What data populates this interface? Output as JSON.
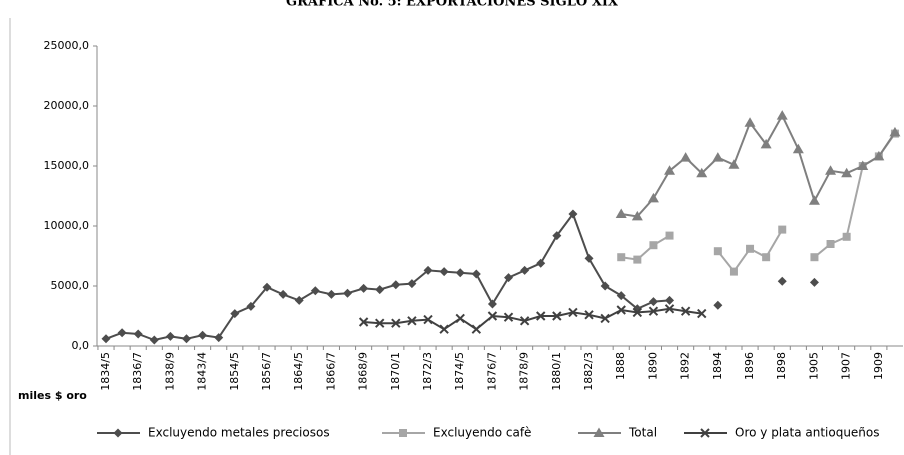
{
  "chart_data": {
    "type": "line",
    "title": "GRÁFICA No. 5: EXPORTACIONES SIGLO XIX",
    "ylabel": "miles $ oro",
    "categories": [
      "1834/5",
      null,
      "1836/7",
      null,
      "1838/9",
      null,
      "1843/4",
      null,
      "1854/5",
      null,
      "1856/7",
      null,
      "1864/5",
      null,
      "1866/7",
      null,
      "1868/9",
      null,
      "1870/1",
      null,
      "1872/3",
      null,
      "1874/5",
      null,
      "1876/7",
      null,
      "1878/9",
      null,
      "1880/1",
      null,
      "1882/3",
      null,
      "1888",
      null,
      "1890",
      null,
      "1892",
      null,
      "1894",
      null,
      "1896",
      null,
      "1898",
      null,
      "1905",
      null,
      "1907",
      null,
      "1909",
      null
    ],
    "ylim": [
      0,
      25000
    ],
    "yticks": [
      {
        "value": 0,
        "label": "0,0"
      },
      {
        "value": 5000,
        "label": "5000,0"
      },
      {
        "value": 10000,
        "label": "10000,0"
      },
      {
        "value": 15000,
        "label": "15000,0"
      },
      {
        "value": 20000,
        "label": "20000,0"
      },
      {
        "value": 25000,
        "label": "25000,0"
      }
    ],
    "grid": false,
    "legend": "bottom",
    "series": [
      {
        "name": "Excluyendo metales preciosos",
        "color": "#4d4d4d",
        "marker": "diamond",
        "values": [
          600,
          1100,
          1000,
          500,
          800,
          600,
          900,
          700,
          2700,
          3300,
          4900,
          4300,
          3800,
          4600,
          4300,
          4400,
          4800,
          4700,
          5100,
          5200,
          6300,
          6200,
          6100,
          6000,
          3500,
          5700,
          6300,
          6900,
          9200,
          11000,
          7300,
          5000,
          4200,
          3100,
          3700,
          3800,
          null,
          null,
          3400,
          null,
          null,
          null,
          5400,
          null,
          5300,
          null,
          null,
          null,
          null,
          null
        ]
      },
      {
        "name": "Excluyendo cafè",
        "color": "#a6a6a6",
        "marker": "square",
        "values": [
          null,
          null,
          null,
          null,
          null,
          null,
          null,
          null,
          null,
          null,
          null,
          null,
          null,
          null,
          null,
          null,
          null,
          null,
          null,
          null,
          null,
          null,
          null,
          null,
          null,
          null,
          null,
          null,
          null,
          null,
          null,
          null,
          7400,
          7200,
          8400,
          9200,
          null,
          null,
          7900,
          6200,
          8100,
          7400,
          9700,
          null,
          7400,
          8500,
          9100,
          15000,
          15800,
          17700
        ]
      },
      {
        "name": "Total",
        "color": "#7f7f7f",
        "marker": "triangle",
        "values": [
          null,
          null,
          null,
          null,
          null,
          null,
          null,
          null,
          null,
          null,
          null,
          null,
          null,
          null,
          null,
          null,
          null,
          null,
          null,
          null,
          null,
          null,
          null,
          null,
          null,
          null,
          null,
          null,
          null,
          null,
          null,
          null,
          11000,
          10800,
          12300,
          14600,
          15700,
          14400,
          15700,
          15100,
          18600,
          16800,
          19200,
          16400,
          12100,
          14600,
          14400,
          15000,
          15800,
          17800
        ]
      },
      {
        "name": "Oro y plata antioqueños",
        "color": "#404040",
        "marker": "x",
        "values": [
          null,
          null,
          null,
          null,
          null,
          null,
          null,
          null,
          null,
          null,
          null,
          null,
          null,
          null,
          null,
          null,
          2000,
          1900,
          1900,
          2100,
          2200,
          1400,
          2300,
          1400,
          2500,
          2400,
          2100,
          2500,
          2500,
          2800,
          2600,
          2300,
          3000,
          2800,
          2900,
          3100,
          2900,
          2700,
          null,
          null,
          null,
          null,
          null,
          null,
          null,
          null,
          null,
          null,
          null,
          null
        ]
      }
    ]
  }
}
